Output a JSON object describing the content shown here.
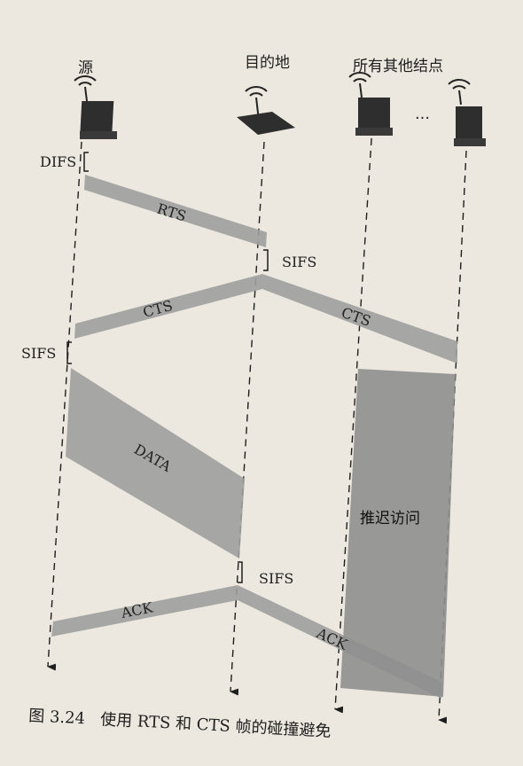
{
  "nodes": {
    "source": "源",
    "destination": "目的地",
    "others": "所有其他结点",
    "ellipsis": "…"
  },
  "intervals": {
    "difs": "DIFS",
    "sifs_1": "SIFS",
    "sifs_2": "SIFS",
    "sifs_3": "SIFS"
  },
  "frames": {
    "rts": "RTS",
    "cts_src": "CTS",
    "cts_other": "CTS",
    "data": "DATA",
    "ack_src": "ACK",
    "ack_other": "ACK"
  },
  "defer": "推迟访问",
  "caption": "图 3.24   使用 RTS 和 CTS 帧的碰撞避免"
}
